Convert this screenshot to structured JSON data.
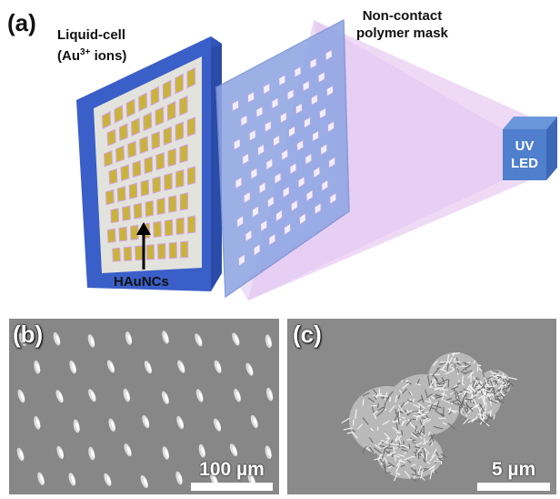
{
  "panel_a": {
    "letter": "(a)",
    "liquid_cell_line1": "Liquid-cell",
    "liquid_cell_line2_pre": "(Au",
    "liquid_cell_sup": "3+",
    "liquid_cell_line2_post": " ions)",
    "mask_line1": "Non-contact",
    "mask_line2": "polymer mask",
    "uv_line1": "UV",
    "uv_line2": "LED",
    "arrow_label": "HAuNCs"
  },
  "panel_b": {
    "letter": "(b)",
    "scale_label": "100 µm"
  },
  "panel_c": {
    "letter": "(c)",
    "scale_label": "5 µm"
  },
  "colors": {
    "frame_blue": "#3a5fc8",
    "frame_side": "#2a4ba8",
    "cell_gray": "#e2e3dc",
    "gold": "#c8b23a",
    "mask_blue": "#8fa6e3",
    "light_cone": "#e5c8f2",
    "uv_box": "#4f7fcd",
    "sem_gray": "#8b8b8b"
  }
}
